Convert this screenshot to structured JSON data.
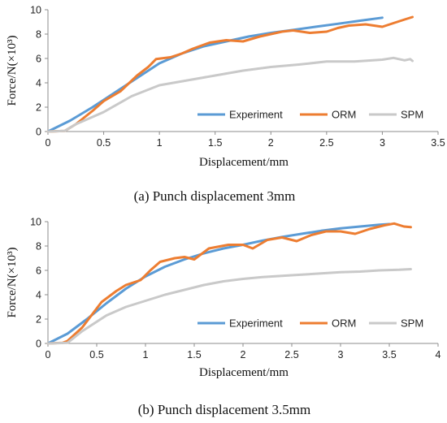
{
  "colors": {
    "experiment": "#5b9bd5",
    "orm": "#ed7d31",
    "spm": "#c9c9c9",
    "axis": "#8c8c8c"
  },
  "chart_data": [
    {
      "type": "line",
      "caption": "(a) Punch displacement 3mm",
      "xlabel": "Displacement/mm",
      "ylabel": "Force/N(×10³)",
      "xlim": [
        0,
        3.5
      ],
      "ylim": [
        0,
        10
      ],
      "xticks": [
        "0",
        "0.5",
        "1",
        "1.5",
        "2",
        "2.5",
        "3",
        "3.5"
      ],
      "yticks": [
        "0",
        "2",
        "4",
        "6",
        "8",
        "10"
      ],
      "grid": false,
      "legend": "bottom-right",
      "series": [
        {
          "name": "Experiment",
          "color_key": "experiment",
          "points": [
            [
              0,
              0.0
            ],
            [
              0.2,
              0.9
            ],
            [
              0.4,
              2.0
            ],
            [
              0.6,
              3.2
            ],
            [
              0.8,
              4.4
            ],
            [
              1.0,
              5.6
            ],
            [
              1.2,
              6.4
            ],
            [
              1.4,
              7.0
            ],
            [
              1.6,
              7.4
            ],
            [
              1.8,
              7.8
            ],
            [
              2.0,
              8.1
            ],
            [
              2.2,
              8.35
            ],
            [
              2.4,
              8.6
            ],
            [
              2.6,
              8.85
            ],
            [
              2.8,
              9.1
            ],
            [
              3.0,
              9.35
            ]
          ]
        },
        {
          "name": "ORM",
          "color_key": "orm",
          "points": [
            [
              0,
              0
            ],
            [
              0.15,
              0.05
            ],
            [
              0.25,
              0.6
            ],
            [
              0.4,
              1.7
            ],
            [
              0.5,
              2.5
            ],
            [
              0.65,
              3.3
            ],
            [
              0.8,
              4.6
            ],
            [
              0.9,
              5.3
            ],
            [
              0.97,
              5.95
            ],
            [
              1.1,
              6.1
            ],
            [
              1.2,
              6.4
            ],
            [
              1.3,
              6.8
            ],
            [
              1.45,
              7.3
            ],
            [
              1.6,
              7.5
            ],
            [
              1.75,
              7.4
            ],
            [
              1.9,
              7.8
            ],
            [
              2.0,
              8.0
            ],
            [
              2.1,
              8.2
            ],
            [
              2.2,
              8.3
            ],
            [
              2.35,
              8.1
            ],
            [
              2.5,
              8.2
            ],
            [
              2.6,
              8.5
            ],
            [
              2.7,
              8.7
            ],
            [
              2.85,
              8.8
            ],
            [
              3.0,
              8.6
            ],
            [
              3.1,
              8.9
            ],
            [
              3.2,
              9.2
            ],
            [
              3.27,
              9.4
            ]
          ]
        },
        {
          "name": "SPM",
          "color_key": "spm",
          "points": [
            [
              0,
              0
            ],
            [
              0.15,
              0.05
            ],
            [
              0.25,
              0.6
            ],
            [
              0.5,
              1.6
            ],
            [
              0.75,
              2.9
            ],
            [
              1.0,
              3.8
            ],
            [
              1.25,
              4.2
            ],
            [
              1.5,
              4.6
            ],
            [
              1.75,
              5.0
            ],
            [
              2.0,
              5.3
            ],
            [
              2.25,
              5.5
            ],
            [
              2.5,
              5.75
            ],
            [
              2.75,
              5.75
            ],
            [
              3.0,
              5.9
            ],
            [
              3.1,
              6.05
            ],
            [
              3.2,
              5.85
            ],
            [
              3.25,
              5.95
            ],
            [
              3.27,
              5.8
            ]
          ]
        }
      ]
    },
    {
      "type": "line",
      "caption": "(b) Punch displacement 3.5mm",
      "xlabel": "Displacement/mm",
      "ylabel": "Force/N(×10³)",
      "xlim": [
        0,
        4
      ],
      "ylim": [
        0,
        10
      ],
      "xticks": [
        "0",
        "0.5",
        "1",
        "1.5",
        "2",
        "2.5",
        "3",
        "3.5",
        "4"
      ],
      "yticks": [
        "0",
        "2",
        "4",
        "6",
        "8",
        "10"
      ],
      "grid": false,
      "legend": "bottom-right",
      "series": [
        {
          "name": "Experiment",
          "color_key": "experiment",
          "points": [
            [
              0,
              0
            ],
            [
              0.2,
              0.8
            ],
            [
              0.4,
              2.0
            ],
            [
              0.6,
              3.3
            ],
            [
              0.8,
              4.5
            ],
            [
              1.0,
              5.5
            ],
            [
              1.2,
              6.3
            ],
            [
              1.4,
              6.9
            ],
            [
              1.6,
              7.4
            ],
            [
              1.8,
              7.8
            ],
            [
              2.0,
              8.1
            ],
            [
              2.2,
              8.45
            ],
            [
              2.4,
              8.75
            ],
            [
              2.6,
              9.0
            ],
            [
              2.8,
              9.25
            ],
            [
              3.0,
              9.45
            ],
            [
              3.2,
              9.6
            ],
            [
              3.4,
              9.75
            ],
            [
              3.5,
              9.8
            ]
          ]
        },
        {
          "name": "ORM",
          "color_key": "orm",
          "points": [
            [
              0,
              0
            ],
            [
              0.15,
              0.05
            ],
            [
              0.2,
              0.2
            ],
            [
              0.35,
              1.3
            ],
            [
              0.55,
              3.4
            ],
            [
              0.7,
              4.3
            ],
            [
              0.8,
              4.8
            ],
            [
              0.95,
              5.2
            ],
            [
              1.05,
              6.0
            ],
            [
              1.15,
              6.7
            ],
            [
              1.3,
              7.0
            ],
            [
              1.4,
              7.1
            ],
            [
              1.5,
              6.9
            ],
            [
              1.65,
              7.8
            ],
            [
              1.85,
              8.1
            ],
            [
              2.0,
              8.1
            ],
            [
              2.1,
              7.8
            ],
            [
              2.25,
              8.5
            ],
            [
              2.4,
              8.7
            ],
            [
              2.55,
              8.4
            ],
            [
              2.7,
              8.9
            ],
            [
              2.85,
              9.2
            ],
            [
              3.0,
              9.2
            ],
            [
              3.15,
              9.0
            ],
            [
              3.3,
              9.4
            ],
            [
              3.45,
              9.7
            ],
            [
              3.55,
              9.85
            ],
            [
              3.65,
              9.6
            ],
            [
              3.72,
              9.55
            ]
          ]
        },
        {
          "name": "SPM",
          "color_key": "spm",
          "points": [
            [
              0,
              0
            ],
            [
              0.2,
              0.05
            ],
            [
              0.35,
              1.0
            ],
            [
              0.6,
              2.3
            ],
            [
              0.8,
              3.0
            ],
            [
              1.0,
              3.5
            ],
            [
              1.2,
              4.0
            ],
            [
              1.4,
              4.4
            ],
            [
              1.6,
              4.8
            ],
            [
              1.8,
              5.1
            ],
            [
              2.0,
              5.3
            ],
            [
              2.2,
              5.45
            ],
            [
              2.5,
              5.6
            ],
            [
              2.8,
              5.75
            ],
            [
              3.0,
              5.85
            ],
            [
              3.2,
              5.9
            ],
            [
              3.4,
              6.0
            ],
            [
              3.6,
              6.05
            ],
            [
              3.72,
              6.1
            ]
          ]
        }
      ]
    }
  ]
}
